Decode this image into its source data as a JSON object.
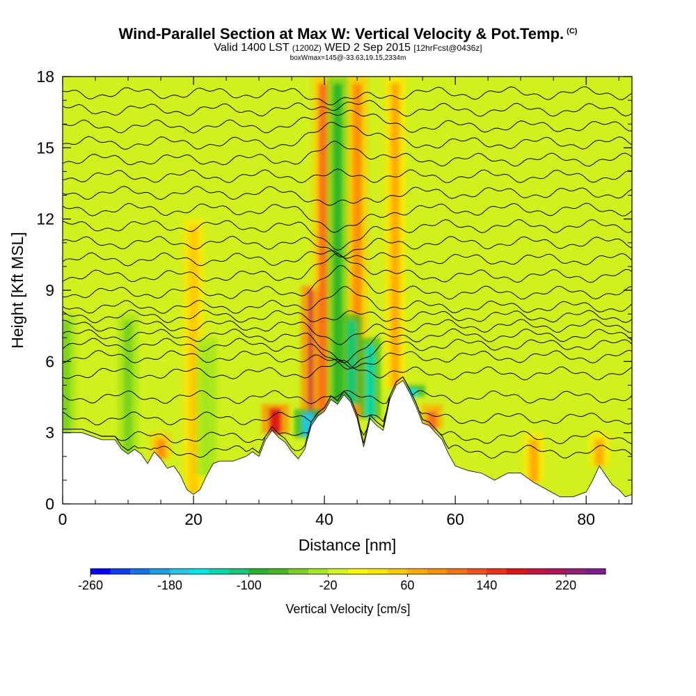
{
  "title": {
    "main": "Wind-Parallel Section at Max W: Vertical Velocity & Pot.Temp.",
    "copyright": "(C)",
    "valid_prefix": "Valid 1400 LST",
    "utc": "(1200Z)",
    "date": "WED 2 Sep 2015",
    "forecast": "[12hrFcst@0436z]",
    "boxinfo": "boxWmax=145@-33.63,19.15,2334m"
  },
  "chart_data": {
    "type": "heatmap",
    "xlabel": "Distance [nm]",
    "ylabel": "Height [Kft MSL]",
    "xlim": [
      0,
      87
    ],
    "ylim": [
      0,
      18
    ],
    "xticks": [
      0,
      20,
      40,
      60,
      80
    ],
    "yticks": [
      0,
      3,
      6,
      9,
      12,
      15,
      18
    ],
    "colorbar": {
      "label": "Vertical Velocity [cm/s]",
      "min": -260,
      "max": 260,
      "step": 20,
      "tick_labels": [
        -260,
        -180,
        -100,
        -20,
        60,
        140,
        220
      ],
      "colors": [
        "#0000ff",
        "#0a3cf5",
        "#1473e6",
        "#19a0e6",
        "#1ec8e6",
        "#00e6e6",
        "#00d7aa",
        "#14c878",
        "#28b428",
        "#46b91e",
        "#78d21e",
        "#a5e61e",
        "#d2f51e",
        "#fafa00",
        "#ffe600",
        "#ffc800",
        "#ffaa00",
        "#ff8c00",
        "#fa6e14",
        "#fa501e",
        "#f03214",
        "#e11414",
        "#c8143c",
        "#b4145a",
        "#961e78",
        "#7d1e8c"
      ]
    },
    "terrain_profile": {
      "distance_nm": [
        0,
        3,
        6,
        8,
        9,
        10,
        11,
        12,
        13,
        14,
        15,
        16,
        17,
        18,
        19,
        20,
        21,
        22,
        23,
        24,
        26,
        28,
        29,
        30,
        31,
        32,
        33,
        34,
        35,
        36,
        37,
        38,
        39,
        40,
        41,
        42,
        43,
        44,
        45,
        46,
        47,
        48,
        49,
        50,
        51,
        52,
        53,
        54,
        55,
        56,
        57,
        58,
        59,
        60,
        62,
        64,
        66,
        68,
        70,
        72,
        74,
        76,
        78,
        80,
        81,
        82,
        83,
        84,
        85,
        86,
        87
      ],
      "height_kft": [
        3.0,
        3.0,
        2.7,
        2.7,
        2.3,
        2.1,
        2.3,
        2.1,
        1.7,
        2.2,
        1.9,
        1.5,
        1.6,
        1.2,
        0.6,
        0.4,
        0.6,
        1.2,
        1.7,
        1.8,
        1.8,
        2.0,
        2.2,
        2.0,
        2.7,
        3.1,
        2.8,
        2.6,
        2.2,
        1.9,
        2.3,
        3.3,
        3.7,
        3.9,
        4.4,
        4.2,
        4.6,
        4.3,
        3.6,
        2.4,
        3.6,
        3.3,
        3.1,
        4.4,
        5.0,
        5.2,
        4.7,
        4.1,
        3.4,
        3.3,
        3.0,
        2.7,
        2.1,
        1.6,
        1.4,
        1.3,
        1.0,
        1.3,
        1.3,
        0.9,
        0.6,
        0.3,
        0.3,
        0.5,
        1.0,
        1.6,
        1.2,
        0.8,
        0.6,
        0.3,
        0.4
      ]
    },
    "updrafts_cms": [
      {
        "x": 32.5,
        "y_top": 4.2,
        "value": 170
      },
      {
        "x": 38.5,
        "y_top": 9.2,
        "value": 180
      },
      {
        "x": 39.8,
        "y_top": 18.0,
        "value": 100
      },
      {
        "x": 45.0,
        "y_top": 18.0,
        "value": 90
      },
      {
        "x": 50.8,
        "y_top": 18.0,
        "value": 60
      },
      {
        "x": 56.5,
        "y_top": 4.2,
        "value": 110
      },
      {
        "x": 15.0,
        "y_top": 3.0,
        "value": 80
      },
      {
        "x": 20.0,
        "y_top": 12.0,
        "value": 50
      },
      {
        "x": 72.0,
        "y_top": 3.0,
        "value": 60
      },
      {
        "x": 82.0,
        "y_top": 3.0,
        "value": 60
      }
    ],
    "downdrafts_cms": [
      {
        "x": 37.5,
        "y_top": 4.0,
        "value": -180
      },
      {
        "x": 42.0,
        "y_top": 18.0,
        "value": -100
      },
      {
        "x": 44.2,
        "y_top": 8.0,
        "value": -120
      },
      {
        "x": 47.0,
        "y_top": 7.0,
        "value": -140
      },
      {
        "x": 53.3,
        "y_top": 5.0,
        "value": -160
      },
      {
        "x": 10.0,
        "y_top": 8.0,
        "value": -60
      },
      {
        "x": 22.0,
        "y_top": 7.0,
        "value": -40
      },
      {
        "x": 0.5,
        "y_top": 8.0,
        "value": -60
      }
    ],
    "theta_contour_levels_kft": [
      2.2,
      2.8,
      3.6,
      4.5,
      5.5,
      6.2,
      6.7,
      7.1,
      7.5,
      7.9,
      8.3,
      8.9,
      9.6,
      10.3,
      11.0,
      11.7,
      12.4,
      13.1,
      13.8,
      14.5,
      15.2,
      15.9,
      16.6,
      17.3
    ]
  }
}
